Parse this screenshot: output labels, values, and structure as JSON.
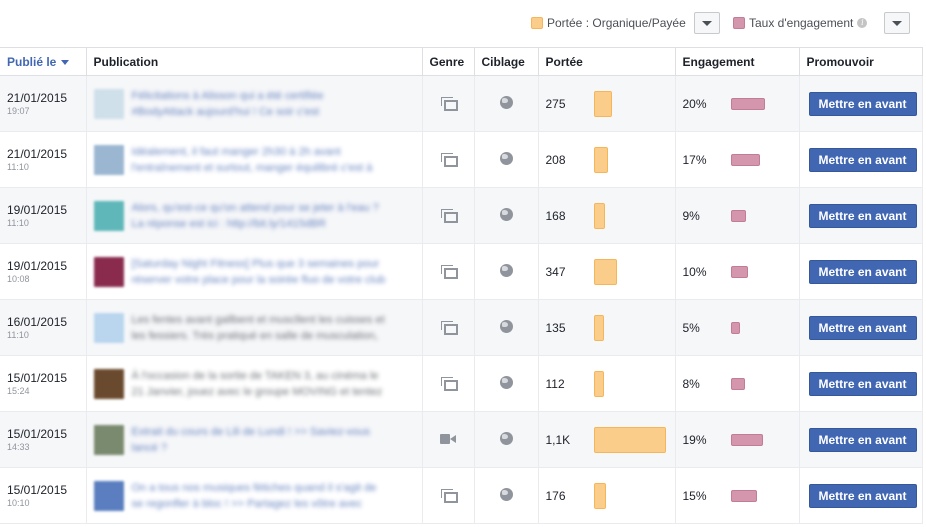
{
  "legend": {
    "reach_label": "Portée : Organique/Payée",
    "reach_color": "#fbcd8a",
    "engagement_label": "Taux d'engagement",
    "engagement_color": "#d496ac",
    "info_glyph": "i"
  },
  "columns": {
    "published": "Publié le",
    "publication": "Publication",
    "genre": "Genre",
    "targeting": "Ciblage",
    "reach": "Portée",
    "engagement": "Engagement",
    "promote": "Promouvoir"
  },
  "promote_label": "Mettre en avant",
  "rows": [
    {
      "date": "21/01/2015",
      "time": "19:07",
      "text1": "Félicitations à Alisson qui a été certifiée",
      "text2": "#BodyAttack aujourd'hui ! Ce soir c'est",
      "thumb": "#cfe0ea",
      "type": "post",
      "reach": "275",
      "reach_value": 275,
      "engagement": "20%",
      "engagement_value": 20
    },
    {
      "date": "21/01/2015",
      "time": "11:10",
      "text1": "Idéalement, il faut manger 2h30 à 2h avant",
      "text2": "l'entraînement et surtout, manger équilibré c'est à",
      "thumb": "#9ab6d1",
      "type": "post",
      "reach": "208",
      "reach_value": 208,
      "engagement": "17%",
      "engagement_value": 17
    },
    {
      "date": "19/01/2015",
      "time": "11:10",
      "text1": "Alors, qu'est-ce qu'on attend pour se jeter à l'eau ?",
      "text2": "La réponse est ici : http://bit.ly/1415dBR",
      "thumb": "#5fb7b9",
      "type": "post",
      "reach": "168",
      "reach_value": 168,
      "engagement": "9%",
      "engagement_value": 9
    },
    {
      "date": "19/01/2015",
      "time": "10:08",
      "text1": "[Saturday Night Fitness] Plus que 3 semaines pour",
      "text2": "réserver votre place pour la soirée fluo de votre club",
      "thumb": "#8a2b4e",
      "type": "post",
      "reach": "347",
      "reach_value": 347,
      "engagement": "10%",
      "engagement_value": 10
    },
    {
      "date": "16/01/2015",
      "time": "11:10",
      "text1": "Les fentes avant gallbent et muscllent les cuisses et",
      "text2": "les fessiers. Très pratiqué en salle de musculation,",
      "thumb": "#b9d6ee",
      "type": "post",
      "reach": "135",
      "reach_value": 135,
      "engagement": "5%",
      "engagement_value": 5
    },
    {
      "date": "15/01/2015",
      "time": "15:24",
      "text1": "À l'occasion de la sortie de TAKEN 3, au cinéma le",
      "text2": "21 Janvier, jouez avec le groupe MOVING et tentez",
      "thumb": "#6a4a2e",
      "type": "post",
      "reach": "112",
      "reach_value": 112,
      "engagement": "8%",
      "engagement_value": 8
    },
    {
      "date": "15/01/2015",
      "time": "14:33",
      "text1": "Extrait du cours de Lili de Lundi ! >> Saviez-vous",
      "text2": "lancé ?",
      "thumb": "#7a8a6e",
      "type": "video",
      "reach": "1,1K",
      "reach_value": 1100,
      "engagement": "19%",
      "engagement_value": 19
    },
    {
      "date": "15/01/2015",
      "time": "10:10",
      "text1": "On a tous nos musiques fétiches quand il s'agit de",
      "text2": "se regonfler à bloc ! >> Partagez les vôtre avec",
      "thumb": "#5a7ec0",
      "type": "post",
      "reach": "176",
      "reach_value": 176,
      "engagement": "15%",
      "engagement_value": 15
    }
  ]
}
